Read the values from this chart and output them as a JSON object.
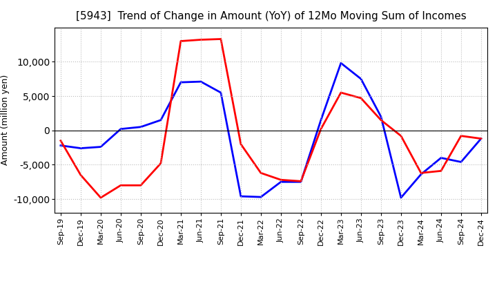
{
  "title": "[5943]  Trend of Change in Amount (YoY) of 12Mo Moving Sum of Incomes",
  "ylabel": "Amount (million yen)",
  "x_labels": [
    "Sep-19",
    "Dec-19",
    "Mar-20",
    "Jun-20",
    "Sep-20",
    "Dec-20",
    "Mar-21",
    "Jun-21",
    "Sep-21",
    "Dec-21",
    "Mar-22",
    "Jun-22",
    "Sep-22",
    "Dec-22",
    "Mar-23",
    "Jun-23",
    "Sep-23",
    "Dec-23",
    "Mar-24",
    "Jun-24",
    "Sep-24",
    "Dec-24"
  ],
  "ordinary_income": [
    -2200,
    -2600,
    -2400,
    200,
    500,
    1500,
    7000,
    7100,
    5500,
    -9600,
    -9700,
    -7500,
    -7500,
    1500,
    9800,
    7500,
    2000,
    -9800,
    -6400,
    -4000,
    -4600,
    -1200
  ],
  "net_income": [
    -1500,
    -6500,
    -9800,
    -8000,
    -8000,
    -4800,
    13000,
    13200,
    13300,
    -2000,
    -6200,
    -7200,
    -7400,
    200,
    5500,
    4700,
    1500,
    -800,
    -6200,
    -5900,
    -800,
    -1200
  ],
  "ordinary_income_color": "#0000ff",
  "net_income_color": "#ff0000",
  "ylim": [
    -12000,
    15000
  ],
  "yticks": [
    -10000,
    -5000,
    0,
    5000,
    10000
  ],
  "background_color": "#ffffff",
  "grid_color": "#bbbbbb",
  "linewidth": 2.0,
  "title_fontsize": 11,
  "ylabel_fontsize": 9,
  "tick_fontsize": 8,
  "legend_fontsize": 9
}
